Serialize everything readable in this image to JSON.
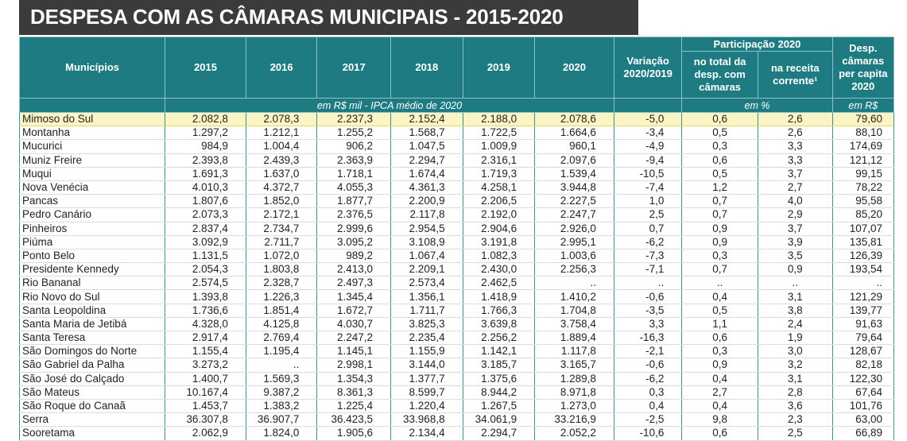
{
  "title": "DESPESA COM AS CÂMARAS MUNICIPAIS - 2015-2020",
  "headers": {
    "municipios": "Municípios",
    "years": [
      "2015",
      "2016",
      "2017",
      "2018",
      "2019",
      "2020"
    ],
    "variacao": "Variação 2020/2019",
    "participacao": "Participação 2020",
    "no_total": "no total da desp. com câmaras",
    "na_receita": "na receita corrente¹",
    "desp_capita": "Desp. câmaras per capita 2020",
    "unit_values": "em R$ mil - IPCA médio de 2020",
    "unit_pct": "em %",
    "unit_rs": "em R$"
  },
  "highlight_color": "#fbf4c5",
  "header_color": "#1f7b82",
  "rows": [
    {
      "name": "Mimoso do Sul",
      "v": [
        "2.082,8",
        "2.078,3",
        "2.237,3",
        "2.152,4",
        "2.188,0",
        "2.078,6"
      ],
      "var": "-5,0",
      "tot": "0,6",
      "rec": "2,6",
      "cap": "79,60",
      "highlight": true
    },
    {
      "name": "Montanha",
      "v": [
        "1.297,2",
        "1.212,1",
        "1.255,2",
        "1.568,7",
        "1.722,5",
        "1.664,6"
      ],
      "var": "-3,4",
      "tot": "0,5",
      "rec": "2,6",
      "cap": "88,10"
    },
    {
      "name": "Mucurici",
      "v": [
        "984,9",
        "1.004,4",
        "906,2",
        "1.047,5",
        "1.009,9",
        "960,1"
      ],
      "var": "-4,9",
      "tot": "0,3",
      "rec": "3,3",
      "cap": "174,69"
    },
    {
      "name": "Muniz Freire",
      "v": [
        "2.393,8",
        "2.439,3",
        "2.363,9",
        "2.294,7",
        "2.316,1",
        "2.097,6"
      ],
      "var": "-9,4",
      "tot": "0,6",
      "rec": "3,3",
      "cap": "121,12"
    },
    {
      "name": "Muqui",
      "v": [
        "1.691,3",
        "1.637,0",
        "1.718,1",
        "1.674,4",
        "1.719,3",
        "1.539,4"
      ],
      "var": "-10,5",
      "tot": "0,5",
      "rec": "3,7",
      "cap": "99,15"
    },
    {
      "name": "Nova Venécia",
      "v": [
        "4.010,3",
        "4.372,7",
        "4.055,3",
        "4.361,3",
        "4.258,1",
        "3.944,8"
      ],
      "var": "-7,4",
      "tot": "1,2",
      "rec": "2,7",
      "cap": "78,22"
    },
    {
      "name": "Pancas",
      "v": [
        "1.807,6",
        "1.852,0",
        "1.877,7",
        "2.200,9",
        "2.206,5",
        "2.227,5"
      ],
      "var": "1,0",
      "tot": "0,7",
      "rec": "4,0",
      "cap": "95,58"
    },
    {
      "name": "Pedro Canário",
      "v": [
        "2.073,3",
        "2.172,1",
        "2.376,5",
        "2.117,8",
        "2.192,0",
        "2.247,7"
      ],
      "var": "2,5",
      "tot": "0,7",
      "rec": "2,9",
      "cap": "85,20"
    },
    {
      "name": "Pinheiros",
      "v": [
        "2.837,4",
        "2.734,7",
        "2.999,6",
        "2.954,5",
        "2.904,6",
        "2.926,0"
      ],
      "var": "0,7",
      "tot": "0,9",
      "rec": "3,7",
      "cap": "107,07"
    },
    {
      "name": "Piúma",
      "v": [
        "3.092,9",
        "2.711,7",
        "3.095,2",
        "3.108,9",
        "3.191,8",
        "2.995,1"
      ],
      "var": "-6,2",
      "tot": "0,9",
      "rec": "3,9",
      "cap": "135,81"
    },
    {
      "name": "Ponto Belo",
      "v": [
        "1.131,5",
        "1.072,0",
        "989,2",
        "1.067,4",
        "1.082,3",
        "1.003,6"
      ],
      "var": "-7,3",
      "tot": "0,3",
      "rec": "3,5",
      "cap": "126,39"
    },
    {
      "name": "Presidente Kennedy",
      "v": [
        "2.054,3",
        "1.803,8",
        "2.413,0",
        "2.209,1",
        "2.430,0",
        "2.256,3"
      ],
      "var": "-7,1",
      "tot": "0,7",
      "rec": "0,9",
      "cap": "193,54"
    },
    {
      "name": "Rio Bananal",
      "v": [
        "2.574,5",
        "2.328,7",
        "2.497,3",
        "2.573,4",
        "2.462,5",
        ".."
      ],
      "var": "..",
      "tot": "..",
      "rec": "..",
      "cap": ".."
    },
    {
      "name": "Rio Novo do Sul",
      "v": [
        "1.393,8",
        "1.226,3",
        "1.345,4",
        "1.356,1",
        "1.418,9",
        "1.410,2"
      ],
      "var": "-0,6",
      "tot": "0,4",
      "rec": "3,1",
      "cap": "121,29"
    },
    {
      "name": "Santa Leopoldina",
      "v": [
        "1.736,6",
        "1.851,4",
        "1.672,7",
        "1.711,7",
        "1.766,3",
        "1.704,8"
      ],
      "var": "-3,5",
      "tot": "0,5",
      "rec": "3,8",
      "cap": "139,77"
    },
    {
      "name": "Santa Maria de Jetibá",
      "v": [
        "4.328,0",
        "4.125,8",
        "4.030,7",
        "3.825,3",
        "3.639,8",
        "3.758,4"
      ],
      "var": "3,3",
      "tot": "1,1",
      "rec": "2,4",
      "cap": "91,63"
    },
    {
      "name": "Santa Teresa",
      "v": [
        "2.917,4",
        "2.769,4",
        "2.247,2",
        "2.235,4",
        "2.256,2",
        "1.889,4"
      ],
      "var": "-16,3",
      "tot": "0,6",
      "rec": "1,9",
      "cap": "79,64"
    },
    {
      "name": "São Domingos do Norte",
      "v": [
        "1.155,4",
        "1.195,4",
        "1.145,1",
        "1.155,9",
        "1.142,1",
        "1.117,8"
      ],
      "var": "-2,1",
      "tot": "0,3",
      "rec": "3,0",
      "cap": "128,67"
    },
    {
      "name": "São Gabriel da Palha",
      "v": [
        "3.273,2",
        "..",
        "2.998,1",
        "3.144,0",
        "3.185,7",
        "3.165,7"
      ],
      "var": "-0,6",
      "tot": "0,9",
      "rec": "3,2",
      "cap": "82,18"
    },
    {
      "name": "São José do Calçado",
      "v": [
        "1.400,7",
        "1.569,3",
        "1.354,3",
        "1.377,7",
        "1.375,6",
        "1.289,8"
      ],
      "var": "-6,2",
      "tot": "0,4",
      "rec": "3,1",
      "cap": "122,30"
    },
    {
      "name": "São Mateus",
      "v": [
        "10.167,4",
        "9.387,2",
        "8.361,3",
        "8.599,7",
        "8.944,2",
        "8.971,8"
      ],
      "var": "0,3",
      "tot": "2,7",
      "rec": "2,8",
      "cap": "67,64"
    },
    {
      "name": "São Roque do Canaã",
      "v": [
        "1.453,7",
        "1.383,2",
        "1.225,4",
        "1.220,4",
        "1.267,5",
        "1.273,0"
      ],
      "var": "0,4",
      "tot": "0,4",
      "rec": "3,6",
      "cap": "101,76"
    },
    {
      "name": "Serra",
      "v": [
        "36.307,8",
        "36.907,7",
        "36.423,5",
        "33.968,8",
        "34.061,9",
        "33.216,9"
      ],
      "var": "-2,5",
      "tot": "9,8",
      "rec": "2,3",
      "cap": "63,00"
    },
    {
      "name": "Sooretama",
      "v": [
        "2.062,9",
        "1.824,0",
        "1.905,6",
        "2.134,4",
        "2.294,7",
        "2.052,2"
      ],
      "var": "-10,6",
      "tot": "0,6",
      "rec": "2,5",
      "cap": "66,89"
    }
  ]
}
